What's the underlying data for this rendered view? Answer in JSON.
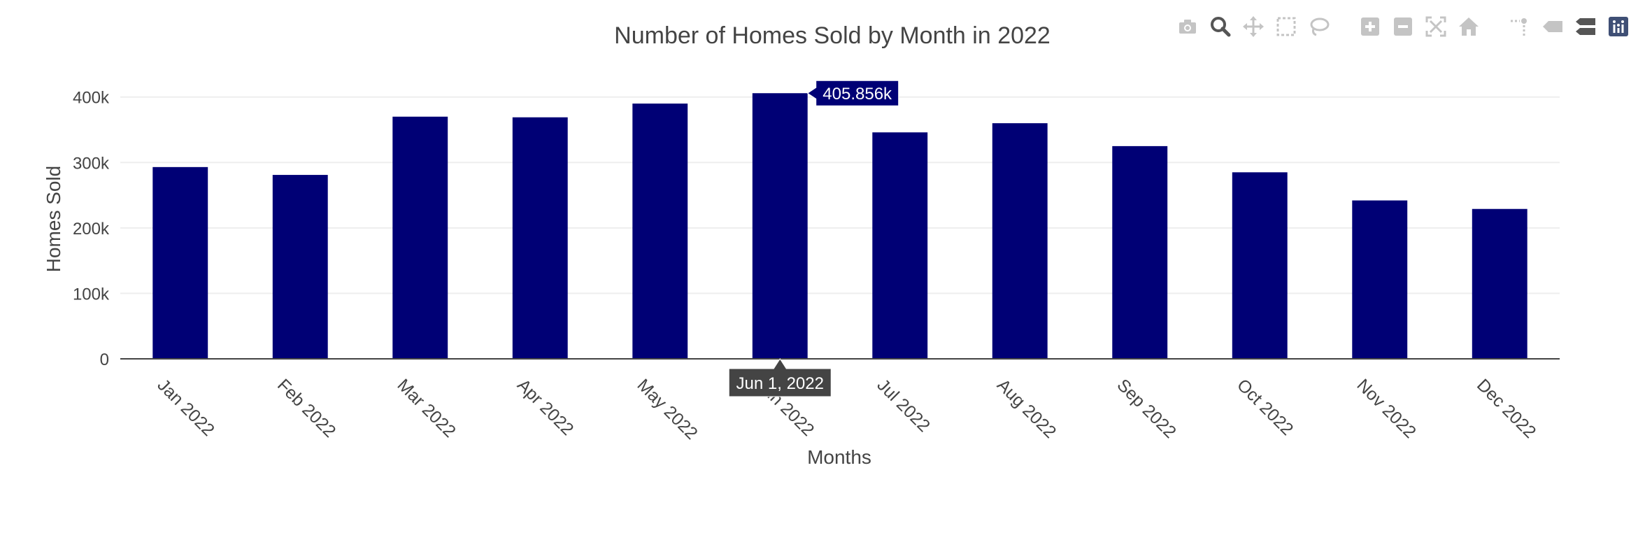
{
  "chart_data": {
    "type": "bar",
    "title": "Number of Homes Sold by Month in 2022",
    "xlabel": "Months",
    "ylabel": "Homes Sold",
    "categories": [
      "Jan 2022",
      "Feb 2022",
      "Mar 2022",
      "Apr 2022",
      "May 2022",
      "Jun 2022",
      "Jul 2022",
      "Aug 2022",
      "Sep 2022",
      "Oct 2022",
      "Nov 2022",
      "Dec 2022"
    ],
    "values": [
      293000,
      281000,
      370000,
      369000,
      390000,
      405856,
      346000,
      360000,
      325000,
      285000,
      242000,
      229000
    ],
    "ylim": [
      0,
      420000
    ],
    "yticks": [
      0,
      100000,
      200000,
      300000,
      400000
    ],
    "ytick_labels": [
      "0",
      "100k",
      "200k",
      "300k",
      "400k"
    ],
    "grid": true,
    "bar_color": "#000075",
    "hover": {
      "index": 5,
      "value_label": "405.856k",
      "x_label": "Jun 1, 2022"
    }
  },
  "modebar": {
    "icons": [
      "camera-icon",
      "zoom-icon",
      "pan-icon",
      "box-select-icon",
      "lasso-select-icon",
      "zoom-in-icon",
      "zoom-out-icon",
      "autoscale-icon",
      "reset-axes-icon",
      "spike-lines-icon",
      "hover-closest-icon",
      "hover-compare-icon",
      "plotly-logo-icon"
    ]
  }
}
